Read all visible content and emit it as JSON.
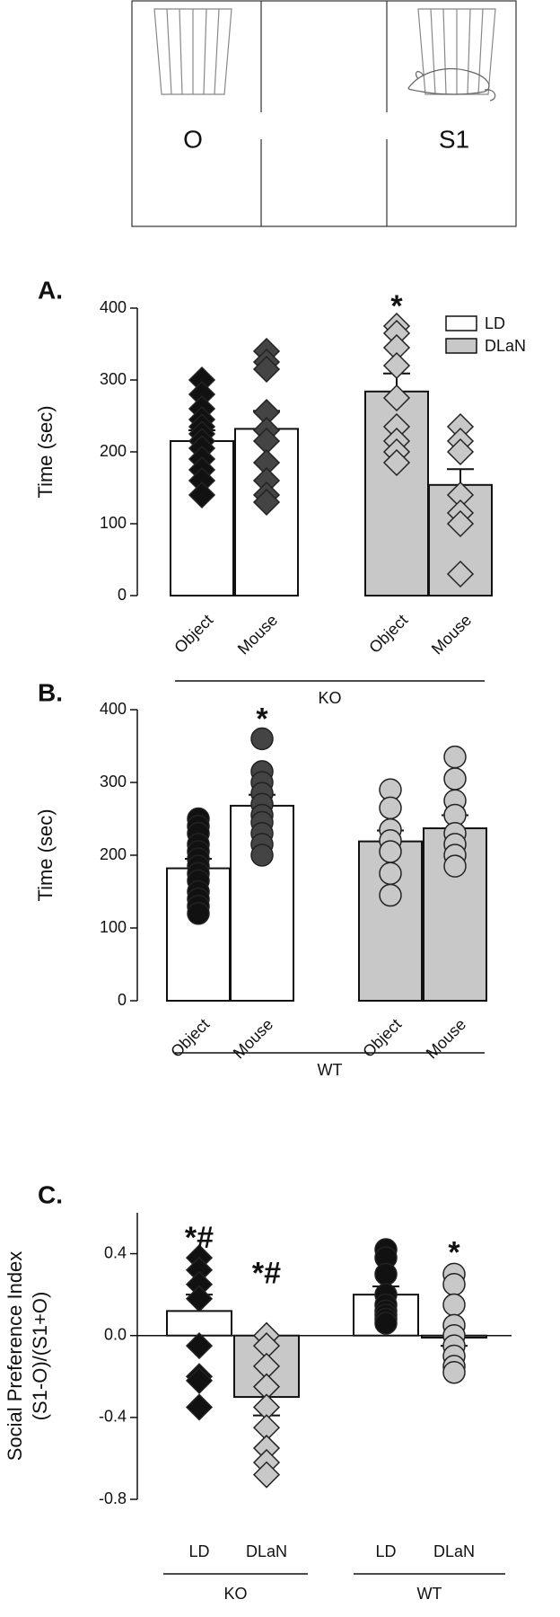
{
  "diagram": {
    "labels": [
      "O",
      "S1"
    ]
  },
  "chart_data": [
    {
      "type": "bar",
      "title": "A.",
      "ylabel": "Time (sec)",
      "categories": [
        "Object",
        "Mouse",
        "Object",
        "Mouse"
      ],
      "group_labels": [
        "KO"
      ],
      "ylim": [
        0,
        400
      ],
      "yticks": [
        0,
        100,
        200,
        300,
        400
      ],
      "legend": true,
      "series": [
        {
          "name": "LD",
          "color": "#ffffff",
          "values": [
            215,
            232,
            null,
            null
          ],
          "errors": [
            15,
            25,
            null,
            null
          ]
        },
        {
          "name": "DLaN",
          "color": "#c8c8c8",
          "values": [
            null,
            null,
            284,
            154
          ],
          "errors": [
            null,
            null,
            25,
            22
          ]
        }
      ],
      "markers": [
        "diamond",
        "diamond",
        "diamond",
        "diamond"
      ],
      "point_colors": [
        "#111111",
        "#444444",
        "#c8c8c8",
        "#c8c8c8"
      ],
      "points": [
        [
          300,
          280,
          260,
          245,
          235,
          225,
          215,
          205,
          190,
          175,
          160,
          140
        ],
        [
          340,
          325,
          315,
          255,
          230,
          215,
          185,
          160,
          140,
          130
        ],
        [
          375,
          365,
          345,
          320,
          275,
          235,
          215,
          200,
          185
        ],
        [
          235,
          215,
          200,
          140,
          115,
          100,
          30
        ]
      ],
      "annotations": [
        {
          "text": "*",
          "category": 2
        }
      ]
    },
    {
      "type": "bar",
      "title": "B.",
      "ylabel": "Time (sec)",
      "categories": [
        "Object",
        "Mouse",
        "Object",
        "Mouse"
      ],
      "group_labels": [
        "WT"
      ],
      "ylim": [
        0,
        400
      ],
      "yticks": [
        0,
        100,
        200,
        300,
        400
      ],
      "legend": false,
      "series": [
        {
          "name": "LD",
          "color": "#ffffff",
          "values": [
            182,
            268,
            null,
            null
          ],
          "errors": [
            13,
            15,
            null,
            null
          ]
        },
        {
          "name": "DLaN",
          "color": "#c8c8c8",
          "values": [
            null,
            null,
            219,
            237
          ],
          "errors": [
            null,
            null,
            15,
            18
          ]
        }
      ],
      "markers": [
        "circle",
        "circle",
        "circle",
        "circle"
      ],
      "point_colors": [
        "#111111",
        "#444444",
        "#c8c8c8",
        "#c8c8c8"
      ],
      "points": [
        [
          250,
          240,
          230,
          215,
          205,
          195,
          185,
          175,
          165,
          150,
          140,
          130,
          120
        ],
        [
          360,
          315,
          300,
          285,
          270,
          255,
          245,
          230,
          215,
          200
        ],
        [
          290,
          265,
          235,
          220,
          205,
          175,
          145
        ],
        [
          335,
          305,
          275,
          255,
          230,
          215,
          200,
          185
        ]
      ],
      "annotations": [
        {
          "text": "*",
          "category": 1
        }
      ]
    },
    {
      "type": "bar",
      "title": "C.",
      "ylabel": [
        "Social Preference Index",
        "(S1-O)/(S1+O)"
      ],
      "categories": [
        "LD",
        "DLaN",
        "LD",
        "DLaN"
      ],
      "group_labels": [
        "KO",
        "WT"
      ],
      "ylim": [
        -0.8,
        0.6
      ],
      "yticks": [
        -0.8,
        -0.4,
        {
          "value": 0,
          "label": "0.0"
        },
        0.4
      ],
      "legend": false,
      "series": [
        {
          "name": "LD",
          "color": "#ffffff",
          "values": [
            0.12,
            null,
            0.2,
            null
          ],
          "errors": [
            0.08,
            null,
            0.04,
            null
          ]
        },
        {
          "name": "DLaN",
          "color": "#c8c8c8",
          "values": [
            null,
            -0.3,
            null,
            -0.01
          ],
          "errors": [
            null,
            0.09,
            null,
            0.04
          ]
        }
      ],
      "markers": [
        "diamond",
        "diamond",
        "circle",
        "circle"
      ],
      "point_colors": [
        "#111111",
        "#c8c8c8",
        "#111111",
        "#c8c8c8"
      ],
      "points": [
        [
          0.38,
          0.32,
          0.25,
          0.18,
          -0.05,
          -0.2,
          -0.22,
          -0.35
        ],
        [
          0.0,
          -0.05,
          -0.15,
          -0.25,
          -0.35,
          -0.45,
          -0.55,
          -0.62,
          -0.68
        ],
        [
          0.42,
          0.38,
          0.3,
          0.2,
          0.15,
          0.12,
          0.1,
          0.08,
          0.06
        ],
        [
          0.3,
          0.25,
          0.15,
          0.05,
          0.0,
          -0.05,
          -0.1,
          -0.15,
          -0.18
        ]
      ],
      "annotations": [
        {
          "text": "*#",
          "category": 0
        },
        {
          "text": "*#",
          "category": 1
        },
        {
          "text": "*",
          "category": 3
        }
      ]
    }
  ]
}
